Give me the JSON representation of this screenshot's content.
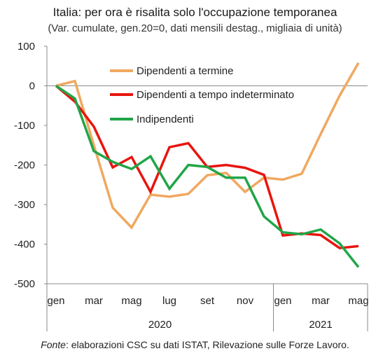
{
  "chart_data": {
    "type": "line",
    "title": "Italia: per ora è risalita solo l'occupazione temporanea",
    "subtitle": "(Var. cumulate, gen.20=0, dati mensili destag., migliaia di unità)",
    "x_tick_labels": [
      "gen",
      "",
      "mar",
      "",
      "mag",
      "",
      "lug",
      "",
      "set",
      "",
      "nov",
      "",
      "gen",
      "",
      "mar",
      "",
      "mag"
    ],
    "years": [
      {
        "label": "2020",
        "start_index": 0,
        "end_index": 11
      },
      {
        "label": "2021",
        "start_index": 12,
        "end_index": 16
      }
    ],
    "ylim": [
      -500,
      100
    ],
    "yticks": [
      100,
      0,
      -100,
      -200,
      -300,
      -400,
      -500
    ],
    "zero_line": true,
    "legend_position": "top-center",
    "series": [
      {
        "name": "Dipendenti a termine",
        "color": "#f0a860",
        "values": [
          0,
          12,
          -150,
          -308,
          -358,
          -275,
          -280,
          -273,
          -226,
          -220,
          -268,
          -232,
          -237,
          -222,
          -122,
          -25,
          58
        ]
      },
      {
        "name": "Dipendenti a tempo indeterminato",
        "color": "#e8140e",
        "values": [
          0,
          -40,
          -103,
          -206,
          -180,
          -268,
          -155,
          -145,
          -205,
          -200,
          -207,
          -225,
          -378,
          -373,
          -377,
          -410,
          -405
        ]
      },
      {
        "name": "Indipendenti",
        "color": "#21a548",
        "values": [
          0,
          -32,
          -165,
          -192,
          -210,
          -178,
          -260,
          -200,
          -205,
          -232,
          -232,
          -330,
          -370,
          -375,
          -363,
          -398,
          -458
        ]
      }
    ]
  },
  "source_label": "Fonte",
  "source_text": ": elaborazioni CSC su dati ISTAT, Rilevazione sulle Forze Lavoro."
}
